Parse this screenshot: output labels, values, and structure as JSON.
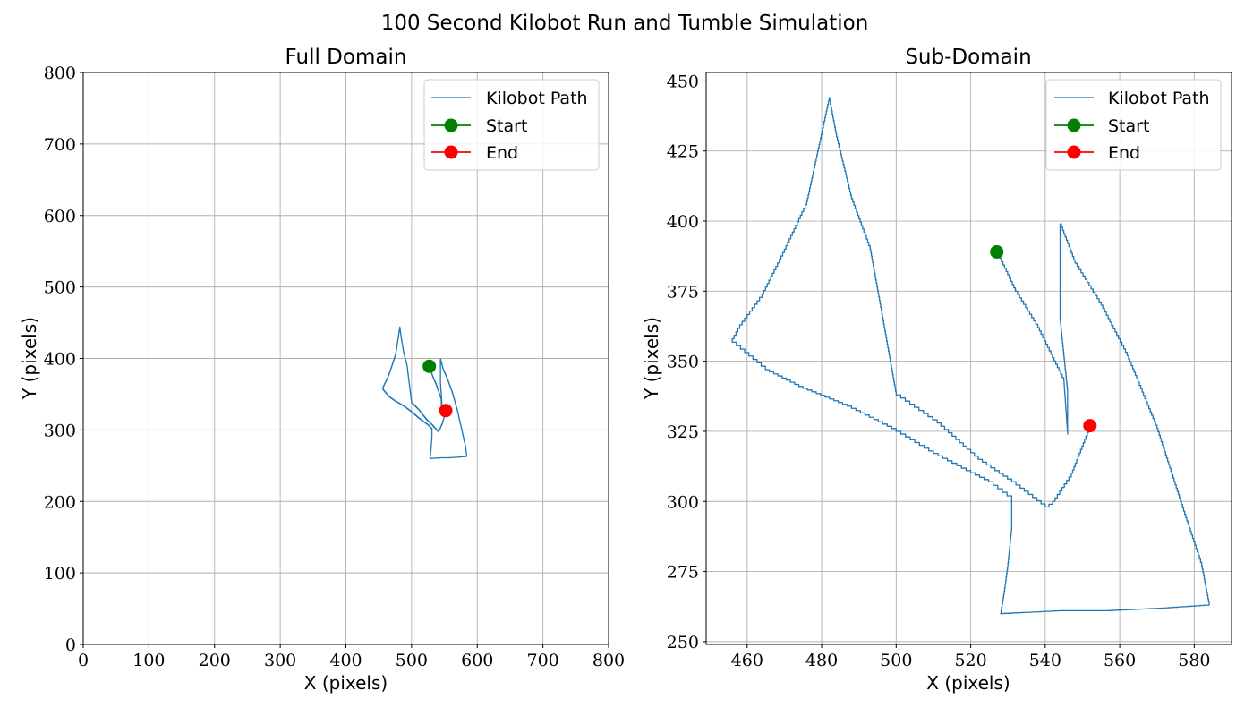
{
  "suptitle": "100 Second Kilobot Run and Tumble Simulation",
  "colors": {
    "path": "#1f77b4",
    "start": "#008000",
    "end": "#ff0000",
    "grid": "#b0b0b0"
  },
  "legend": {
    "path": "Kilobot Path",
    "start": "Start",
    "end": "End",
    "placement": "top-right"
  },
  "chart_data": [
    {
      "type": "line",
      "title": "Full Domain",
      "xlabel": "X (pixels)",
      "ylabel": "Y (pixels)",
      "xlim": [
        0,
        800
      ],
      "ylim": [
        0,
        800
      ],
      "xticks": [
        0,
        100,
        200,
        300,
        400,
        500,
        600,
        700,
        800
      ],
      "yticks": [
        0,
        100,
        200,
        300,
        400,
        500,
        600,
        700,
        800
      ],
      "grid": true,
      "series": [
        {
          "name": "Kilobot Path",
          "kind": "path"
        },
        {
          "name": "Start",
          "kind": "marker",
          "x": 527,
          "y": 389
        },
        {
          "name": "End",
          "kind": "marker",
          "x": 552,
          "y": 327
        }
      ]
    },
    {
      "type": "line",
      "title": "Sub-Domain",
      "xlabel": "X (pixels)",
      "ylabel": "Y (pixels)",
      "xlim": [
        449,
        590
      ],
      "ylim": [
        249,
        453
      ],
      "xticks": [
        460,
        480,
        500,
        520,
        540,
        560,
        580
      ],
      "yticks": [
        250,
        275,
        300,
        325,
        350,
        375,
        400,
        425,
        450
      ],
      "grid": true,
      "series": [
        {
          "name": "Kilobot Path",
          "kind": "path"
        },
        {
          "name": "Start",
          "kind": "marker",
          "x": 527,
          "y": 389
        },
        {
          "name": "End",
          "kind": "marker",
          "x": 552,
          "y": 327
        }
      ]
    }
  ],
  "path_points": [
    [
      527,
      389
    ],
    [
      532,
      375
    ],
    [
      538,
      362
    ],
    [
      545,
      343
    ],
    [
      546,
      324
    ],
    [
      546,
      340
    ],
    [
      544,
      366
    ],
    [
      544,
      399
    ],
    [
      548,
      385
    ],
    [
      555,
      370
    ],
    [
      562,
      352
    ],
    [
      570,
      326
    ],
    [
      578,
      293
    ],
    [
      582,
      277
    ],
    [
      584,
      263
    ],
    [
      573,
      262
    ],
    [
      557,
      261
    ],
    [
      545,
      261
    ],
    [
      529,
      260
    ],
    [
      528,
      260
    ],
    [
      529,
      268
    ],
    [
      530,
      278
    ],
    [
      531,
      291
    ],
    [
      531,
      302
    ],
    [
      526,
      307
    ],
    [
      520,
      311
    ],
    [
      510,
      318
    ],
    [
      500,
      326
    ],
    [
      488,
      334
    ],
    [
      475,
      341
    ],
    [
      466,
      347
    ],
    [
      456,
      358
    ],
    [
      458,
      363
    ],
    [
      464,
      374
    ],
    [
      470,
      390
    ],
    [
      476,
      407
    ],
    [
      482,
      444
    ],
    [
      484,
      430
    ],
    [
      488,
      408
    ],
    [
      493,
      390
    ],
    [
      496,
      368
    ],
    [
      500,
      338
    ],
    [
      511,
      328
    ],
    [
      522,
      315
    ],
    [
      531,
      307
    ],
    [
      540,
      298
    ],
    [
      542,
      300
    ],
    [
      547,
      310
    ],
    [
      552,
      327
    ]
  ]
}
